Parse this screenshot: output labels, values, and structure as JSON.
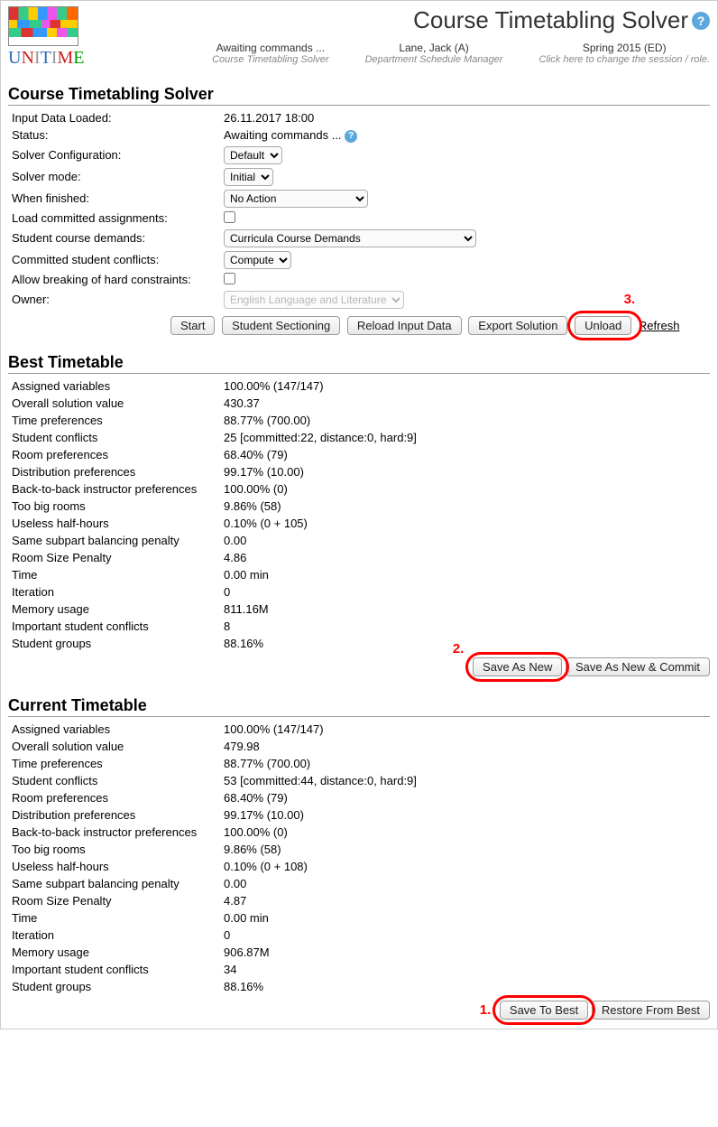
{
  "header": {
    "page_title": "Course Timetabling Solver",
    "meta": [
      {
        "main": "Awaiting commands ...",
        "sub": "Course Timetabling Solver"
      },
      {
        "main": "Lane, Jack (A)",
        "sub": "Department Schedule Manager"
      },
      {
        "main": "Spring 2015 (ED)",
        "sub": "Click here to change the session / role."
      }
    ]
  },
  "solver": {
    "title": "Course Timetabling Solver",
    "rows": {
      "input_loaded_label": "Input Data Loaded:",
      "input_loaded_value": "26.11.2017 18:00",
      "status_label": "Status:",
      "status_value": "Awaiting commands ...",
      "config_label": "Solver Configuration:",
      "config_value": "Default",
      "mode_label": "Solver mode:",
      "mode_value": "Initial",
      "finished_label": "When finished:",
      "finished_value": "No Action",
      "load_committed_label": "Load committed assignments:",
      "demands_label": "Student course demands:",
      "demands_value": "Curricula Course Demands",
      "committed_conflicts_label": "Committed student conflicts:",
      "committed_conflicts_value": "Compute",
      "allow_break_label": "Allow breaking of hard constraints:",
      "owner_label": "Owner:",
      "owner_value": "English Language and Literature"
    },
    "buttons": {
      "start": "Start",
      "student_sectioning": "Student Sectioning",
      "reload": "Reload Input Data",
      "export": "Export Solution",
      "unload": "Unload",
      "refresh": "Refresh"
    }
  },
  "best": {
    "title": "Best Timetable",
    "rows": [
      {
        "label": "Assigned variables",
        "value": "100.00% (147/147)"
      },
      {
        "label": "Overall solution value",
        "value": "430.37"
      },
      {
        "label": "Time preferences",
        "value": "88.77% (700.00)"
      },
      {
        "label": "Student conflicts",
        "value": "25 [committed:22, distance:0, hard:9]"
      },
      {
        "label": "Room preferences",
        "value": "68.40% (79)"
      },
      {
        "label": "Distribution preferences",
        "value": "99.17% (10.00)"
      },
      {
        "label": "Back-to-back instructor preferences",
        "value": "100.00% (0)"
      },
      {
        "label": "Too big rooms",
        "value": "9.86% (58)"
      },
      {
        "label": "Useless half-hours",
        "value": "0.10% (0 + 105)"
      },
      {
        "label": "Same subpart balancing penalty",
        "value": "0.00"
      },
      {
        "label": "Room Size Penalty",
        "value": "4.86"
      },
      {
        "label": "Time",
        "value": "0.00 min"
      },
      {
        "label": "Iteration",
        "value": "0"
      },
      {
        "label": "Memory usage",
        "value": "811.16M"
      },
      {
        "label": "Important student conflicts",
        "value": "8"
      },
      {
        "label": "Student groups",
        "value": "88.16%"
      }
    ],
    "buttons": {
      "save_new": "Save As New",
      "save_new_commit": "Save As New & Commit"
    }
  },
  "current": {
    "title": "Current Timetable",
    "rows": [
      {
        "label": "Assigned variables",
        "value": "100.00% (147/147)"
      },
      {
        "label": "Overall solution value",
        "value": "479.98"
      },
      {
        "label": "Time preferences",
        "value": "88.77% (700.00)"
      },
      {
        "label": "Student conflicts",
        "value": "53 [committed:44, distance:0, hard:9]"
      },
      {
        "label": "Room preferences",
        "value": "68.40% (79)"
      },
      {
        "label": "Distribution preferences",
        "value": "99.17% (10.00)"
      },
      {
        "label": "Back-to-back instructor preferences",
        "value": "100.00% (0)"
      },
      {
        "label": "Too big rooms",
        "value": "9.86% (58)"
      },
      {
        "label": "Useless half-hours",
        "value": "0.10% (0 + 108)"
      },
      {
        "label": "Same subpart balancing penalty",
        "value": "0.00"
      },
      {
        "label": "Room Size Penalty",
        "value": "4.87"
      },
      {
        "label": "Time",
        "value": "0.00 min"
      },
      {
        "label": "Iteration",
        "value": "0"
      },
      {
        "label": "Memory usage",
        "value": "906.87M"
      },
      {
        "label": "Important student conflicts",
        "value": "34"
      },
      {
        "label": "Student groups",
        "value": "88.16%"
      }
    ],
    "buttons": {
      "save_best": "Save To Best",
      "restore": "Restore From Best"
    }
  },
  "annotations": {
    "n1": "1.",
    "n2": "2.",
    "n3": "3."
  }
}
